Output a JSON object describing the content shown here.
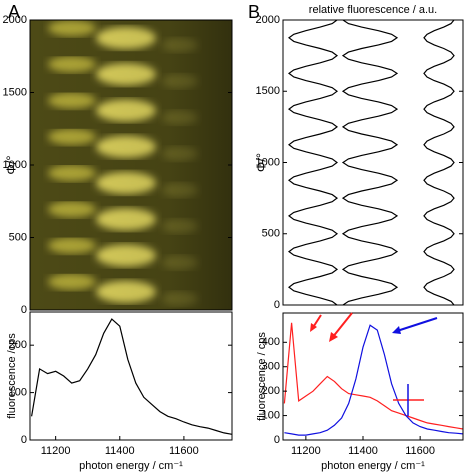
{
  "chart_data": [
    {
      "type": "image",
      "panel_label": "A",
      "ylabel": "Φ/°",
      "ylim": [
        0,
        2000
      ],
      "yticks": [
        0,
        500,
        1000,
        1500,
        2000
      ]
    },
    {
      "type": "line",
      "ylabel": "fluorescence /cps",
      "xlabel": "photon energy / cm⁻¹",
      "xlim": [
        11120,
        11750
      ],
      "ylim": [
        0,
        270
      ],
      "xticks": [
        11200,
        11400,
        11600
      ],
      "yticks": [
        0,
        100,
        200
      ],
      "x": [
        11125,
        11150,
        11175,
        11200,
        11225,
        11250,
        11275,
        11300,
        11325,
        11350,
        11375,
        11400,
        11425,
        11450,
        11475,
        11500,
        11525,
        11550,
        11575,
        11600,
        11625,
        11650,
        11675,
        11700,
        11725,
        11750
      ],
      "series": [
        {
          "color": "#000000",
          "values": [
            50,
            150,
            140,
            145,
            135,
            120,
            125,
            150,
            180,
            225,
            255,
            240,
            170,
            120,
            90,
            75,
            60,
            50,
            45,
            38,
            32,
            28,
            25,
            20,
            15,
            12
          ]
        }
      ]
    },
    {
      "type": "line",
      "orientation": "vertical",
      "panel_label": "B",
      "xlabel": "relative fluorescence / a.u.",
      "ylabel": "Φ/°",
      "xlim": [
        0,
        3
      ],
      "ylim": [
        0,
        2000
      ],
      "yticks": [
        0,
        500,
        1000,
        1500,
        2000
      ],
      "y": [
        0,
        25,
        50,
        75,
        100,
        125,
        150,
        175,
        200,
        225,
        250,
        275,
        300,
        325,
        350,
        375,
        400,
        425,
        450,
        475,
        500,
        525,
        550,
        575,
        600,
        625,
        650,
        675,
        700,
        725,
        750,
        775,
        800,
        825,
        850,
        875,
        900,
        925,
        950,
        975,
        1000,
        1025,
        1050,
        1075,
        1100,
        1125,
        1150,
        1175,
        1200,
        1225,
        1250,
        1275,
        1300,
        1325,
        1350,
        1375,
        1400,
        1425,
        1450,
        1475,
        1500,
        1525,
        1550,
        1575,
        1600,
        1625,
        1650,
        1675,
        1700,
        1725,
        1750,
        1775,
        1800,
        1825,
        1850,
        1875,
        1900,
        1925,
        1950,
        1975,
        2000
      ],
      "series": [
        {
          "color": "#000000",
          "values": [
            0.9,
            0.82,
            0.62,
            0.38,
            0.18,
            0.1,
            0.18,
            0.38,
            0.62,
            0.82,
            0.9,
            0.82,
            0.62,
            0.38,
            0.18,
            0.1,
            0.18,
            0.38,
            0.62,
            0.82,
            0.9,
            0.82,
            0.62,
            0.38,
            0.18,
            0.1,
            0.18,
            0.38,
            0.62,
            0.82,
            0.9,
            0.82,
            0.62,
            0.38,
            0.18,
            0.1,
            0.18,
            0.38,
            0.62,
            0.82,
            0.9,
            0.82,
            0.62,
            0.38,
            0.18,
            0.1,
            0.18,
            0.38,
            0.62,
            0.82,
            0.9,
            0.82,
            0.62,
            0.38,
            0.18,
            0.1,
            0.18,
            0.38,
            0.62,
            0.82,
            0.9,
            0.82,
            0.62,
            0.38,
            0.18,
            0.1,
            0.18,
            0.38,
            0.62,
            0.82,
            0.9,
            0.82,
            0.62,
            0.38,
            0.18,
            0.1,
            0.18,
            0.38,
            0.62,
            0.82,
            0.9
          ]
        },
        {
          "color": "#000000",
          "values": [
            1.0,
            1.09,
            1.31,
            1.59,
            1.81,
            1.9,
            1.81,
            1.59,
            1.31,
            1.09,
            1.0,
            1.09,
            1.31,
            1.59,
            1.81,
            1.9,
            1.81,
            1.59,
            1.31,
            1.09,
            1.0,
            1.09,
            1.31,
            1.59,
            1.81,
            1.9,
            1.81,
            1.59,
            1.31,
            1.09,
            1.0,
            1.09,
            1.31,
            1.59,
            1.81,
            1.9,
            1.81,
            1.59,
            1.31,
            1.09,
            1.0,
            1.09,
            1.31,
            1.59,
            1.81,
            1.9,
            1.81,
            1.59,
            1.31,
            1.09,
            1.0,
            1.09,
            1.31,
            1.59,
            1.81,
            1.9,
            1.81,
            1.59,
            1.31,
            1.09,
            1.0,
            1.09,
            1.31,
            1.59,
            1.81,
            1.9,
            1.81,
            1.59,
            1.31,
            1.09,
            1.0,
            1.09,
            1.31,
            1.59,
            1.81,
            1.9,
            1.81,
            1.59,
            1.31,
            1.09,
            1.0
          ]
        },
        {
          "color": "#000000",
          "values": [
            2.85,
            2.8,
            2.68,
            2.52,
            2.4,
            2.35,
            2.4,
            2.52,
            2.68,
            2.8,
            2.85,
            2.8,
            2.68,
            2.52,
            2.4,
            2.35,
            2.4,
            2.52,
            2.68,
            2.8,
            2.85,
            2.8,
            2.68,
            2.52,
            2.4,
            2.35,
            2.4,
            2.52,
            2.68,
            2.8,
            2.85,
            2.8,
            2.68,
            2.52,
            2.4,
            2.35,
            2.4,
            2.52,
            2.68,
            2.8,
            2.85,
            2.8,
            2.68,
            2.52,
            2.4,
            2.35,
            2.4,
            2.52,
            2.68,
            2.8,
            2.85,
            2.8,
            2.68,
            2.52,
            2.4,
            2.35,
            2.4,
            2.52,
            2.68,
            2.8,
            2.85,
            2.8,
            2.68,
            2.52,
            2.4,
            2.35,
            2.4,
            2.52,
            2.68,
            2.8,
            2.85,
            2.8,
            2.68,
            2.52,
            2.4,
            2.35,
            2.4,
            2.52,
            2.68,
            2.8,
            2.85
          ]
        }
      ]
    },
    {
      "type": "line",
      "ylabel": "fluorescence / cps",
      "xlabel": "photon energy / cm⁻¹",
      "xlim": [
        11120,
        11750
      ],
      "ylim": [
        0,
        520
      ],
      "xticks": [
        11200,
        11400,
        11600
      ],
      "yticks": [
        0,
        100,
        200,
        300,
        400
      ],
      "x": [
        11125,
        11150,
        11175,
        11200,
        11225,
        11250,
        11275,
        11300,
        11325,
        11350,
        11375,
        11400,
        11425,
        11450,
        11475,
        11500,
        11525,
        11550,
        11575,
        11600,
        11625,
        11650,
        11675,
        11700,
        11725,
        11750
      ],
      "series": [
        {
          "color": "#ff2020",
          "values": [
            150,
            480,
            160,
            180,
            200,
            230,
            260,
            240,
            210,
            190,
            185,
            180,
            175,
            160,
            140,
            120,
            110,
            100,
            90,
            80,
            70,
            65,
            60,
            55,
            50,
            45
          ]
        },
        {
          "color": "#1010e0",
          "values": [
            30,
            25,
            20,
            20,
            25,
            30,
            40,
            60,
            90,
            150,
            250,
            380,
            470,
            450,
            350,
            230,
            150,
            100,
            70,
            55,
            45,
            40,
            35,
            30,
            28,
            25
          ]
        }
      ]
    }
  ]
}
